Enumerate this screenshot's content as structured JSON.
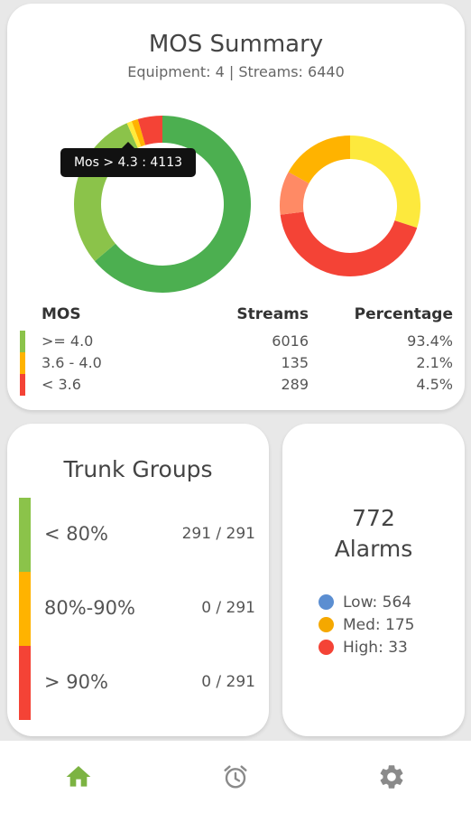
{
  "mos": {
    "title": "MOS Summary",
    "subtitle": "Equipment: 4 | Streams: 6440",
    "tooltip": "Mos > 4.3 : 4113",
    "donut_left": [
      {
        "label": "green-dark",
        "value": 4113,
        "color": "#4caf50"
      },
      {
        "label": "green-light",
        "value": 1903,
        "color": "#8bc34a"
      },
      {
        "label": "yellow",
        "value": 60,
        "color": "#ffeb3b"
      },
      {
        "label": "orange",
        "value": 75,
        "color": "#ffb300"
      },
      {
        "label": "red",
        "value": 289,
        "color": "#f44336"
      }
    ],
    "donut_right": [
      {
        "label": "yellow",
        "value": 30,
        "color": "#fde93d"
      },
      {
        "label": "red",
        "value": 43,
        "color": "#f44336"
      },
      {
        "label": "salmon",
        "value": 10,
        "color": "#ff8a65"
      },
      {
        "label": "orange",
        "value": 17,
        "color": "#ffb300"
      }
    ],
    "table": {
      "headers": {
        "mos": "MOS",
        "streams": "Streams",
        "percentage": "Percentage"
      },
      "rows": [
        {
          "range": ">= 4.0",
          "streams": "6016",
          "percentage": "93.4%",
          "color": "#8bc34a"
        },
        {
          "range": "3.6 - 4.0",
          "streams": "135",
          "percentage": "2.1%",
          "color": "#ffb300"
        },
        {
          "range": "< 3.6",
          "streams": "289",
          "percentage": "4.5%",
          "color": "#f44336"
        }
      ]
    }
  },
  "trunk": {
    "title": "Trunk Groups",
    "rows": [
      {
        "label": "< 80%",
        "value": "291 / 291",
        "color": "#8bc34a"
      },
      {
        "label": "80%-90%",
        "value": "0 / 291",
        "color": "#ffb300"
      },
      {
        "label": "> 90%",
        "value": "0 / 291",
        "color": "#f44336"
      }
    ]
  },
  "alarms": {
    "count": "772",
    "label": "Alarms",
    "items": [
      {
        "text": "Low: 564",
        "color": "#5b8ed1"
      },
      {
        "text": "Med: 175",
        "color": "#f5a800"
      },
      {
        "text": "High: 33",
        "color": "#f44336"
      }
    ]
  },
  "nav": {
    "active_color": "#7cb342",
    "inactive_color": "#8a8a8a",
    "items": [
      "home-icon",
      "alarm-clock-icon",
      "gear-icon"
    ]
  }
}
